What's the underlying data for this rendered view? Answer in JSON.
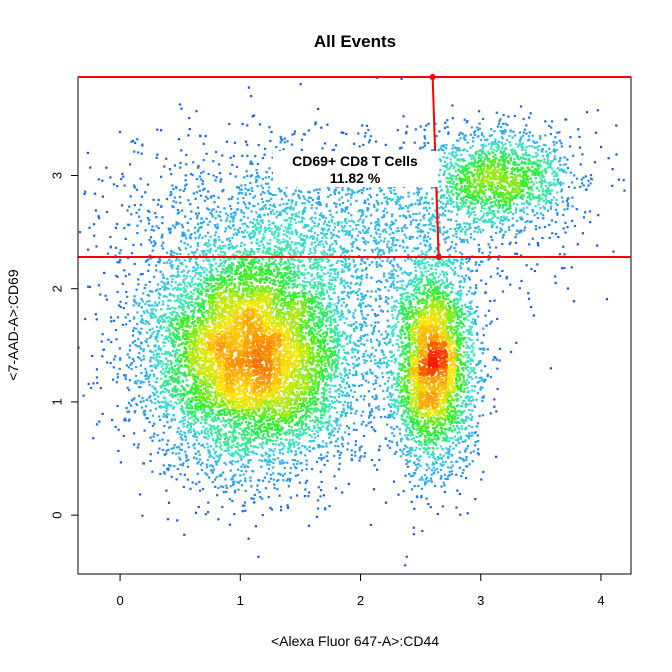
{
  "chart_data": {
    "type": "scatter",
    "title": "All Events",
    "xlabel": "<Alexa Fluor 647-A>:CD44",
    "ylabel": "<7-AAD-A>:CD69",
    "xlim": [
      -0.35,
      4.25
    ],
    "ylim": [
      -0.52,
      3.87
    ],
    "xticks": [
      0,
      1,
      2,
      3,
      4
    ],
    "yticks": [
      0,
      1,
      2,
      3
    ],
    "density_coloring": "blue-cyan-green-yellow-red",
    "populations": [
      {
        "center": [
          1.1,
          1.42
        ],
        "spread": [
          0.45,
          0.5
        ],
        "weight": 0.55
      },
      {
        "center": [
          2.6,
          1.32
        ],
        "spread": [
          0.18,
          0.45
        ],
        "weight": 0.22
      },
      {
        "center": [
          3.15,
          2.98
        ],
        "spread": [
          0.3,
          0.22
        ],
        "weight": 0.1
      },
      {
        "center": [
          1.8,
          2.6
        ],
        "spread": [
          0.9,
          0.4
        ],
        "weight": 0.13
      }
    ],
    "gate": {
      "name": "CD69+ CD8 T Cells",
      "percent": "11.82 %",
      "x_range": [
        -0.35,
        2.65
      ],
      "y_range": [
        2.28,
        3.87
      ],
      "handle_points": [
        [
          2.6,
          3.87
        ],
        [
          2.65,
          2.28
        ]
      ]
    },
    "colors": {
      "gate": "#ff0000",
      "low_density": "#1a3fe8",
      "high_density": "#ff2000"
    }
  }
}
